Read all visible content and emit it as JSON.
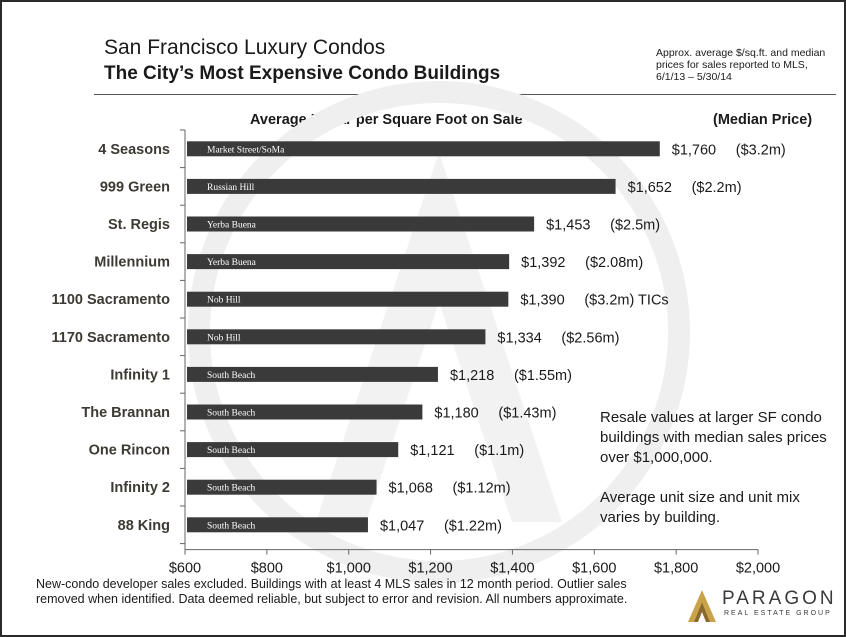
{
  "header": {
    "title_line1": "San Francisco Luxury Condos",
    "title_line2": "The City’s Most Expensive Condo Buildings",
    "note": "Approx. average $/sq.ft. and median prices for sales reported to MLS, 6/1/13 – 5/30/14"
  },
  "annotations": {
    "resale": "Resale values at larger SF condo buildings with median sales prices over $1,000,000.",
    "unit_mix": "Average unit size and unit mix varies by building."
  },
  "footer": {
    "text": "New-condo developer sales excluded. Buildings with at least 4 MLS sales in 12 month period. Outlier sales removed when identified. Data deemed reliable, but subject to error and revision. All numbers approximate."
  },
  "logo": {
    "name": "PARAGON",
    "tagline": "REAL ESTATE GROUP"
  },
  "chart_data": {
    "type": "bar",
    "orientation": "horizontal",
    "title": "Average Dollar per Square Foot on Sale",
    "secondary_header": "(Median Price)",
    "xlim": [
      600,
      2000
    ],
    "x_ticks": [
      "$600",
      "$800",
      "$1,000",
      "$1,200",
      "$1,400",
      "$1,600",
      "$1,800",
      "$2,000"
    ],
    "x_tick_values": [
      600,
      800,
      1000,
      1200,
      1400,
      1600,
      1800,
      2000
    ],
    "grid": false,
    "bar_color": "#3a3a3a",
    "categories": [
      "4 Seasons",
      "999 Green",
      "St. Regis",
      "Millennium",
      "1100 Sacramento",
      "1170 Sacramento",
      "Infinity 1",
      "The Brannan",
      "One Rincon",
      "Infinity 2",
      "88 King"
    ],
    "values": [
      1760,
      1652,
      1453,
      1392,
      1390,
      1334,
      1218,
      1180,
      1121,
      1068,
      1047
    ],
    "value_labels": [
      "$1,760",
      "$1,652",
      "$1,453",
      "$1,392",
      "$1,390",
      "$1,334",
      "$1,218",
      "$1,180",
      "$1,121",
      "$1,068",
      "$1,047"
    ],
    "median_labels": [
      "($3.2m)",
      "($2.2m)",
      "($2.5m)",
      "($2.08m)",
      "($3.2m) TICs",
      "($2.56m)",
      "($1.55m)",
      "($1.43m)",
      "($1.1m)",
      "($1.12m)",
      "($1.22m)"
    ],
    "neighborhoods": [
      "Market Street/SoMa",
      "Russian Hill",
      "Yerba Buena",
      "Yerba Buena",
      "Nob Hill",
      "Nob Hill",
      "South Beach",
      "South Beach",
      "South Beach",
      "South Beach",
      "South Beach"
    ]
  }
}
